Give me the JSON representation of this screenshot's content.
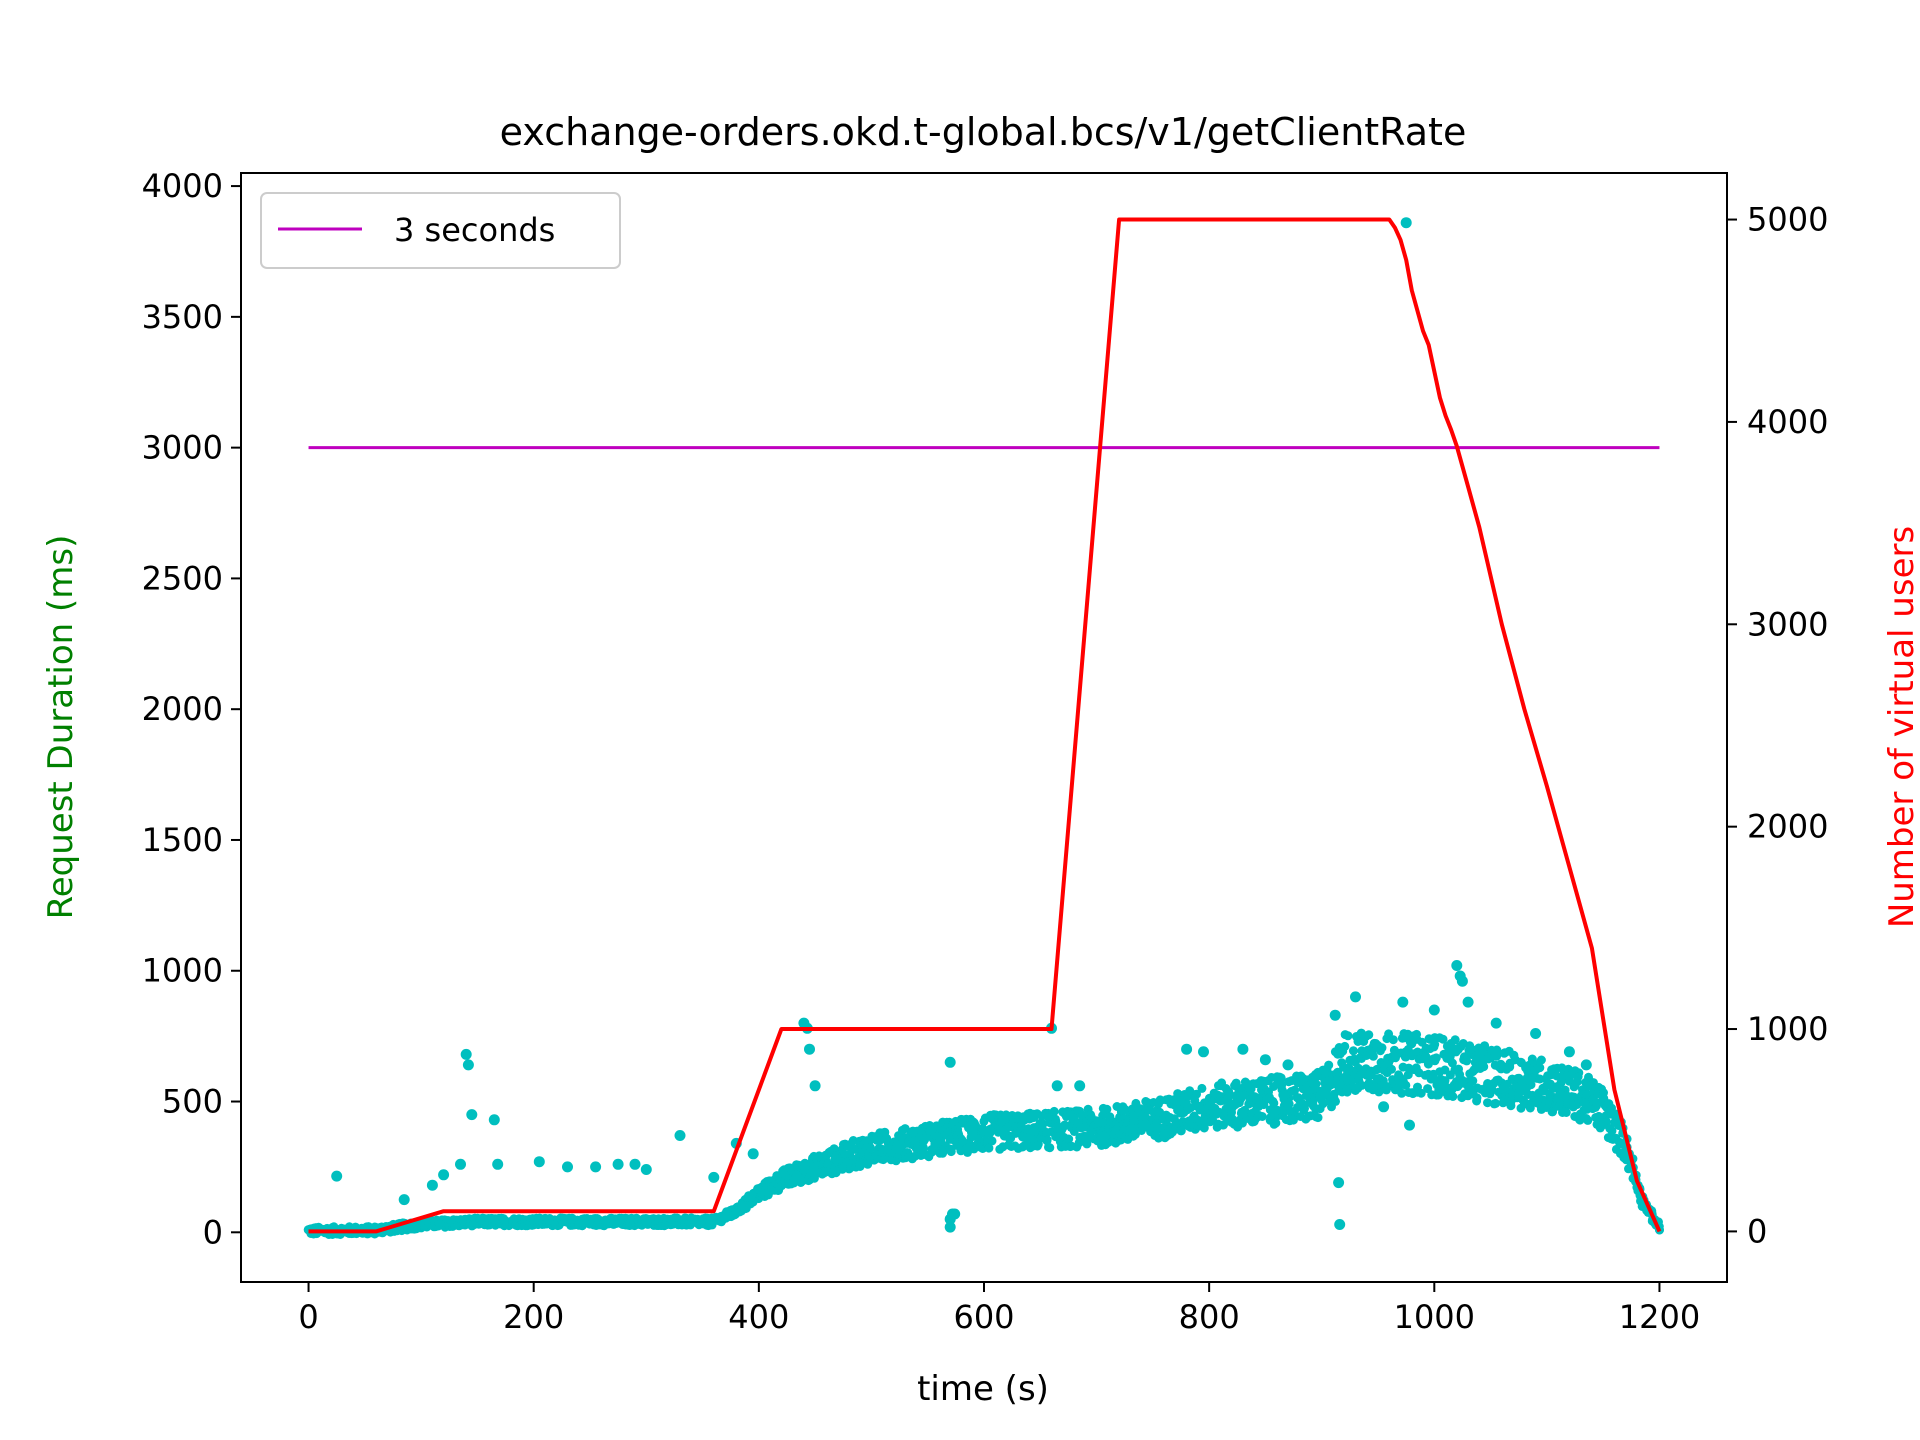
{
  "chart_data": {
    "type": "scatter",
    "title": "exchange-orders.okd.t-global.bcs/v1/getClientRate",
    "xlabel": "time (s)",
    "ylabel_left": "Request Duration (ms)",
    "ylabel_right": "Number of virtual users",
    "xlim": [
      -60,
      1260
    ],
    "ylim_left": [
      -190,
      4050
    ],
    "ylim_right": [
      -250,
      5230
    ],
    "x_ticks": [
      0,
      200,
      400,
      600,
      800,
      1000,
      1200
    ],
    "y_left_ticks": [
      0,
      500,
      1000,
      1500,
      2000,
      2500,
      3000,
      3500,
      4000
    ],
    "y_right_ticks": [
      0,
      1000,
      2000,
      3000,
      4000,
      5000
    ],
    "grid": false,
    "legend_position": "top-left",
    "legend": [
      {
        "label": "3 seconds",
        "color": "#bf00bf"
      }
    ],
    "colors": {
      "scatter": "#00bfbf",
      "threshold": "#bf00bf",
      "users": "#ff0000",
      "ylabel_left": "#008000",
      "ylabel_right": "#ff0000"
    },
    "threshold_line": {
      "x": [
        0,
        1200
      ],
      "y": 3000
    },
    "users_series": {
      "x": [
        0,
        60,
        120,
        360,
        420,
        660,
        720,
        960,
        965,
        970,
        975,
        980,
        985,
        990,
        995,
        1000,
        1005,
        1010,
        1015,
        1020,
        1030,
        1040,
        1060,
        1080,
        1100,
        1120,
        1140,
        1160,
        1180,
        1200
      ],
      "y": [
        0,
        0,
        100,
        100,
        1000,
        1000,
        5000,
        5000,
        4960,
        4900,
        4800,
        4650,
        4550,
        4450,
        4380,
        4250,
        4120,
        4030,
        3960,
        3880,
        3680,
        3480,
        3000,
        2580,
        2200,
        1800,
        1400,
        700,
        250,
        0
      ]
    },
    "duration_trend": {
      "x": [
        0,
        60,
        100,
        150,
        200,
        250,
        300,
        360,
        380,
        400,
        420,
        450,
        500,
        550,
        600,
        650,
        700,
        750,
        800,
        850,
        900,
        920,
        950,
        1000,
        1050,
        1100,
        1130,
        1150,
        1170,
        1185,
        1200
      ],
      "y": [
        5,
        8,
        30,
        40,
        40,
        40,
        40,
        40,
        80,
        150,
        200,
        250,
        320,
        350,
        380,
        390,
        400,
        430,
        480,
        500,
        520,
        650,
        650,
        640,
        600,
        560,
        520,
        470,
        330,
        120,
        15
      ]
    },
    "duration_outliers": {
      "x": [
        25,
        85,
        110,
        120,
        135,
        140,
        142,
        145,
        165,
        168,
        205,
        230,
        255,
        275,
        290,
        300,
        330,
        360,
        380,
        395,
        440,
        443,
        445,
        450,
        570,
        570,
        572,
        574,
        570,
        660,
        665,
        685,
        780,
        795,
        830,
        850,
        870,
        895,
        912,
        915,
        916,
        930,
        955,
        972,
        975,
        978,
        1000,
        1020,
        1023,
        1025,
        1030,
        1055,
        1090,
        1120,
        1135
      ],
      "y": [
        215,
        125,
        180,
        220,
        260,
        680,
        640,
        450,
        430,
        260,
        270,
        250,
        250,
        260,
        260,
        240,
        370,
        210,
        340,
        300,
        800,
        780,
        700,
        560,
        50,
        20,
        70,
        70,
        650,
        780,
        560,
        560,
        700,
        690,
        700,
        660,
        640,
        600,
        830,
        190,
        30,
        900,
        480,
        880,
        3860,
        410,
        850,
        1020,
        980,
        960,
        880,
        800,
        760,
        690,
        640
      ]
    }
  }
}
